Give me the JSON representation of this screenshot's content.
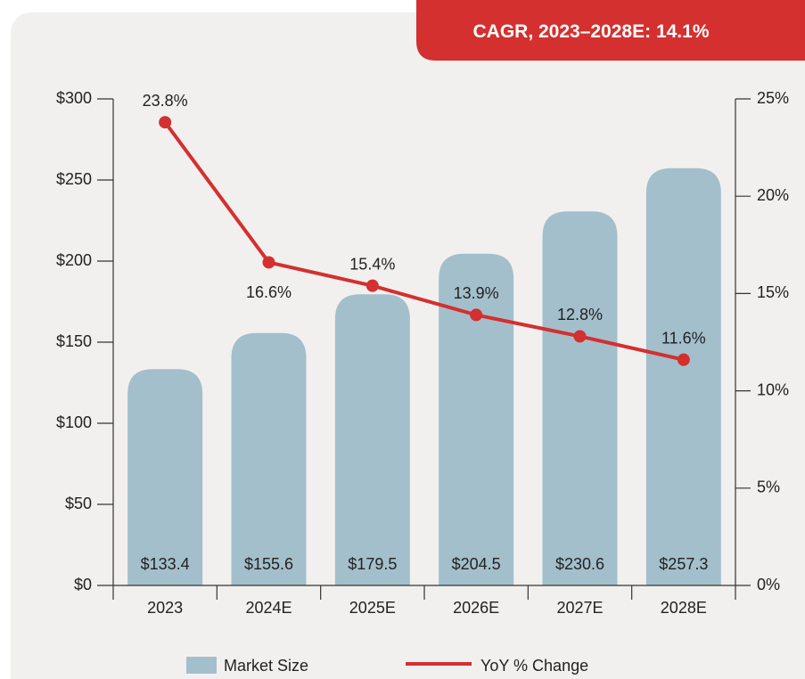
{
  "chart_data": {
    "type": "bar_line",
    "annotation": {
      "text": "CAGR, 2023–2028E:",
      "value": "14.1%"
    },
    "categories": [
      "2023",
      "2024E",
      "2025E",
      "2026E",
      "2027E",
      "2028E"
    ],
    "series": [
      {
        "name": "Market Size",
        "type": "bar",
        "color": "#a3bfcc",
        "values": [
          133.4,
          155.6,
          179.5,
          204.5,
          230.6,
          257.3
        ],
        "value_labels": [
          "$133.4",
          "$155.6",
          "$179.5",
          "$204.5",
          "$230.6",
          "$257.3"
        ]
      },
      {
        "name": "YoY % Change",
        "type": "line",
        "axis": "y2",
        "color": "#d3302f",
        "values": [
          23.8,
          16.6,
          15.4,
          13.9,
          12.8,
          11.6
        ],
        "value_labels": [
          "23.8%",
          "16.6%",
          "15.4%",
          "13.9%",
          "12.8%",
          "11.6%"
        ]
      }
    ],
    "ylim": [
      0,
      300
    ],
    "yticks": [
      {
        "value": 0,
        "label": "$0"
      },
      {
        "value": 50,
        "label": "$50"
      },
      {
        "value": 100,
        "label": "$100"
      },
      {
        "value": 150,
        "label": "$150"
      },
      {
        "value": 200,
        "label": "$200"
      },
      {
        "value": 250,
        "label": "$250"
      },
      {
        "value": 300,
        "label": "$300"
      }
    ],
    "y2lim": [
      0,
      25
    ],
    "y2ticks": [
      {
        "value": 0,
        "label": "0%"
      },
      {
        "value": 5,
        "label": "5%"
      },
      {
        "value": 10,
        "label": "10%"
      },
      {
        "value": 15,
        "label": "15%"
      },
      {
        "value": 20,
        "label": "20%"
      },
      {
        "value": 25,
        "label": "25%"
      }
    ],
    "legend": "bottom"
  }
}
